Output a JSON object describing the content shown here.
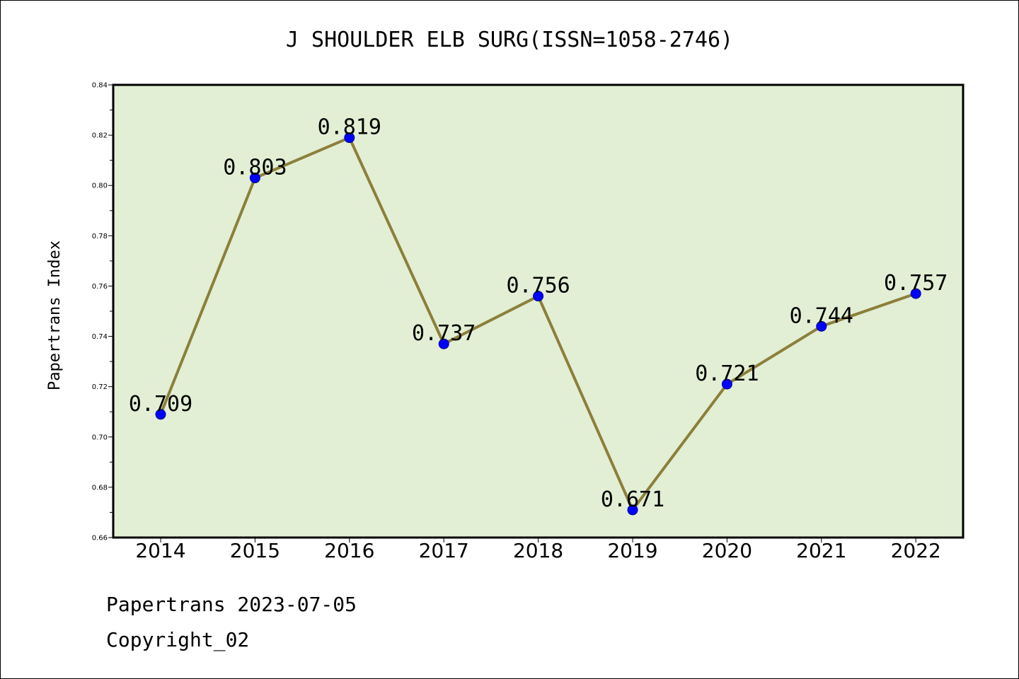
{
  "chart_data": {
    "type": "line",
    "title": "J SHOULDER ELB SURG(ISSN=1058-2746)",
    "ylabel": "Papertrans Index",
    "xlabel": "",
    "categories": [
      "2014",
      "2015",
      "2016",
      "2017",
      "2018",
      "2019",
      "2020",
      "2021",
      "2022"
    ],
    "series": [
      {
        "values": [
          0.709,
          0.803,
          0.819,
          0.737,
          0.756,
          0.671,
          0.721,
          0.744,
          0.757
        ]
      }
    ],
    "data_labels": [
      "0.709",
      "0.803",
      "0.819",
      "0.737",
      "0.756",
      "0.671",
      "0.721",
      "0.744",
      "0.757"
    ],
    "ylim": [
      0.66,
      0.84
    ],
    "yticks": [
      "0.66",
      "0.68",
      "0.70",
      "0.72",
      "0.74",
      "0.76",
      "0.78",
      "0.80",
      "0.82",
      "0.84"
    ],
    "grid": false,
    "legend": "none",
    "colors": {
      "plot_background": "#e2efd5",
      "line": "#8c7f3a",
      "marker": "#0000ff",
      "marker_edge": "#00008b"
    }
  },
  "footer": {
    "line1": "Papertrans 2023-07-05",
    "line2": "Copyright_02"
  }
}
